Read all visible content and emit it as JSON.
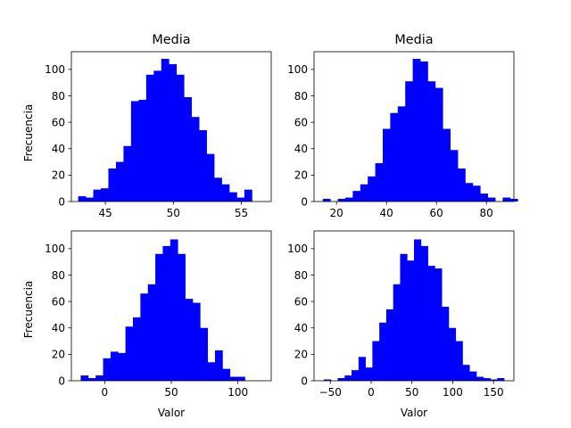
{
  "chart_data": [
    {
      "type": "bar",
      "title": "Media",
      "xlabel": "",
      "ylabel": "Frecuencia",
      "xlim": [
        42.5,
        57.2
      ],
      "ylim": [
        0,
        113.4
      ],
      "xticks": [
        45,
        50,
        55
      ],
      "yticks": [
        0,
        20,
        40,
        60,
        80,
        100
      ],
      "bar_color": "#0000ff",
      "bin_start": 43.0,
      "bin_width": 0.5556,
      "values": [
        4,
        3,
        9,
        10,
        25,
        30,
        42,
        76,
        77,
        96,
        99,
        108,
        104,
        96,
        79,
        64,
        54,
        36,
        18,
        13,
        7,
        3,
        9
      ]
    },
    {
      "type": "bar",
      "title": "Media",
      "xlabel": "",
      "ylabel": "",
      "xlim": [
        11,
        91
      ],
      "ylim": [
        0,
        113.4
      ],
      "xticks": [
        20,
        40,
        60,
        80
      ],
      "yticks": [
        0,
        20,
        40,
        60,
        80,
        100
      ],
      "bar_color": "#0000ff",
      "bin_start": 14.5,
      "bin_width": 3.0,
      "values": [
        2,
        0,
        2,
        3,
        8,
        13,
        19,
        29,
        55,
        67,
        72,
        91,
        108,
        106,
        91,
        86,
        55,
        39,
        25,
        14,
        12,
        6,
        3,
        0,
        3,
        2
      ]
    },
    {
      "type": "bar",
      "title": "",
      "xlabel": "Valor",
      "ylabel": "Frecuencia",
      "xlim": [
        -25,
        125
      ],
      "ylim": [
        0,
        113.4
      ],
      "xticks": [
        0,
        50,
        100
      ],
      "yticks": [
        0,
        20,
        40,
        60,
        80,
        100
      ],
      "bar_color": "#0000ff",
      "bin_start": -18,
      "bin_width": 5.6,
      "values": [
        4,
        2,
        4,
        17,
        22,
        21,
        41,
        48,
        66,
        73,
        96,
        102,
        107,
        96,
        62,
        59,
        40,
        14,
        23,
        9,
        3,
        3
      ]
    },
    {
      "type": "bar",
      "title": "",
      "xlabel": "Valor",
      "ylabel": "",
      "xlim": [
        -70,
        175
      ],
      "ylim": [
        0,
        113.4
      ],
      "xticks": [
        -50,
        0,
        50,
        100,
        150
      ],
      "yticks": [
        0,
        20,
        40,
        60,
        80,
        100
      ],
      "bar_color": "#0000ff",
      "bin_start": -58,
      "bin_width": 8.5,
      "values": [
        1,
        0,
        2,
        4,
        8,
        18,
        10,
        30,
        44,
        54,
        73,
        96,
        91,
        107,
        102,
        87,
        85,
        56,
        40,
        30,
        12,
        7,
        3,
        2,
        1,
        2
      ]
    }
  ]
}
